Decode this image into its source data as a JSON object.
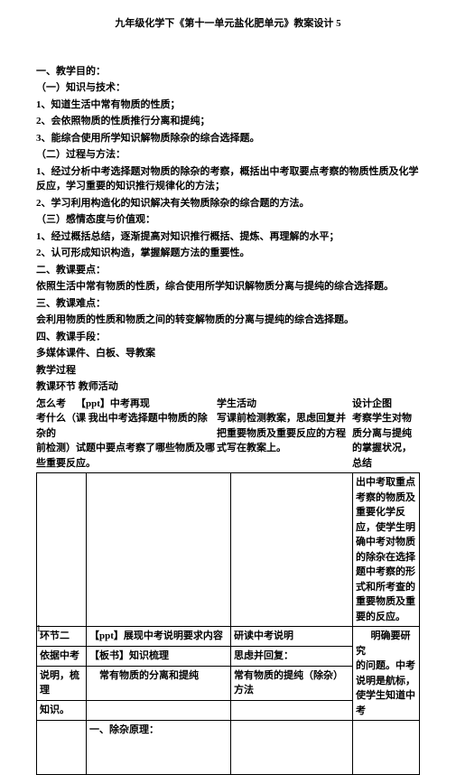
{
  "header": "九年级化学下《第十一单元盐化肥单元》教案设计 5",
  "goal_title": "一、教学目的：",
  "sub1_title": "（一）知识与技术：",
  "sub1_1": "1、知道生活中常有物质的性质；",
  "sub1_2": "2、会依照物质的性质推行分离和提纯；",
  "sub1_3": "3、能综合使用所学知识解物质除杂的综合选择题。",
  "sub2_title": "（二）过程与方法：",
  "sub2_1": "1、经过分析中考选择题对物质的除杂的考察，概括出中考取要点考察的物质性质及化学反应，学习重要的知识推行规律化的方法；",
  "sub2_2": "2、学习利用构造化的知识解决有关物质除杂的综合题的方法。",
  "sub3_title": "（三）感情态度与价值观：",
  "sub3_1": "1、经过概括总结，逐渐提高对知识推行概括、提炼、再理解的水平；",
  "sub3_2": "2、认可形成知识构造，掌握解题方法的重要性。",
  "keypoint_title": "二、教课要点：",
  "keypoint_text": "依照生活中常有物质的性质，综合使用所学知识解物质分离与提纯的综合选择题。",
  "diff_title": "三、教课难点：",
  "diff_text": "会利用物质的性质和物质之间的转变解物质的分离与提纯的综合选择题。",
  "means_title": "四、教课手段：",
  "means_text": "多媒体课件、白板、导教案",
  "proc_title": "教学过程",
  "proc_head1": "教课环节 教师活动",
  "link1_a": "怎么考",
  "link1_b": "【ppt】中考再现",
  "link1_c": "考什么（课    我出中考选择题中物质的除杂的",
  "link1_d": "前检测）试题中要点考察了哪些物质及哪",
  "link1_e": "些重要反应。",
  "student_title": "学生活动",
  "student_text": "写课前检测教案，思虑回复并把重要物质及重要反应的方程式写在教案上。",
  "design_title": "设计企图",
  "design_text": "考察学生对物质分离与提纯的掌握状况，总结出中考取重点考察的物质及重要化学反应，使学生明确中考对物质的除杂在选择题中考察的形式和所考查的重要物质及重要的反应。",
  "r2_a": "环节二",
  "r2_b1": "【ppt】展现中考说明要求内容",
  "r2_c1": "研读中考说明",
  "r2_d1": "明确要研究",
  "r3_a": "依据中考",
  "r3_b": "【板书】知识梳理",
  "r3_c": "思虑并回复：",
  "r3_d": "的问题。中考说明是航标，使学生知道中考",
  "r4_a": "说明，梳理",
  "r4_b": "常有物质的分离和提纯",
  "r4_c": "常有物质的提纯（除杂）方法",
  "r5_a": "知识。",
  "r6_b": "一、除杂原理：",
  "page": "1"
}
